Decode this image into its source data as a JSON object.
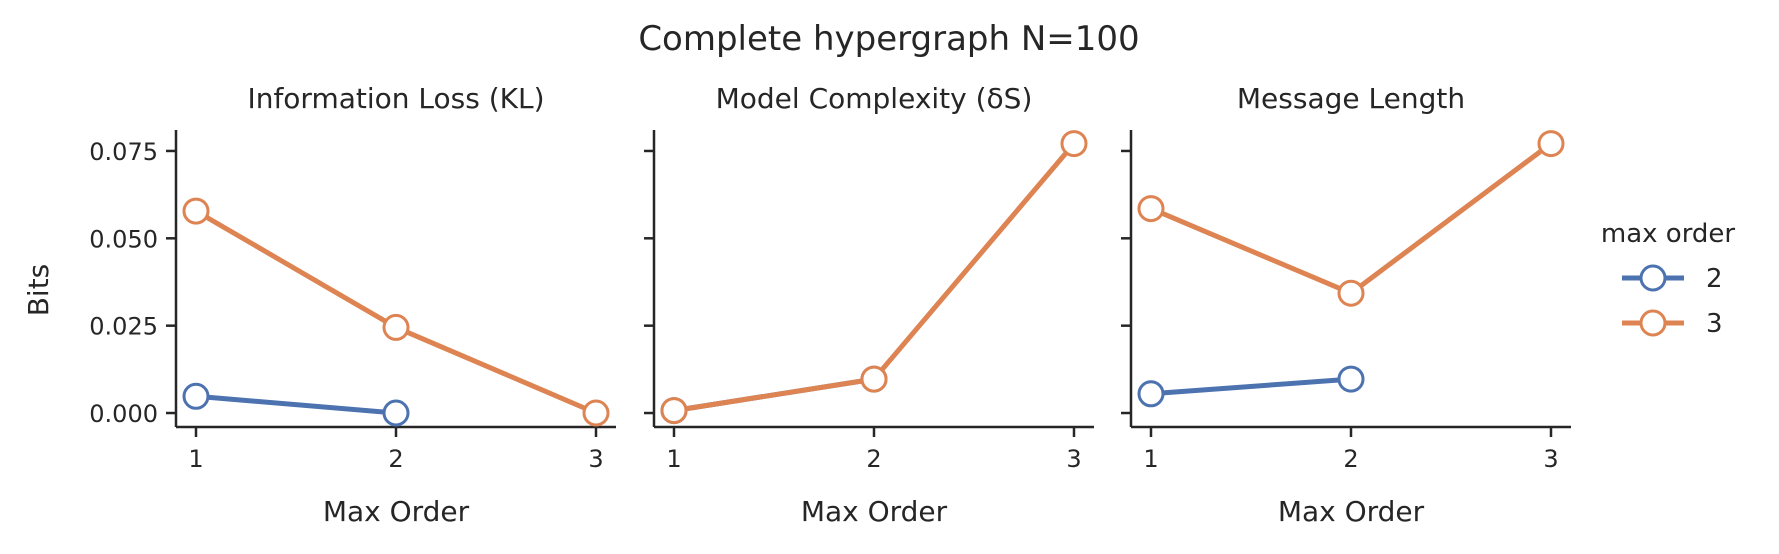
{
  "suptitle": "Complete hypergraph N=100",
  "ylabel": "Bits",
  "legend": {
    "title": "max order",
    "placement": "right",
    "items": [
      {
        "label": "2",
        "color": "#4c72b0"
      },
      {
        "label": "3",
        "color": "#dd8452"
      }
    ]
  },
  "chart_data": [
    {
      "type": "line",
      "title": "Information Loss (KL)",
      "xlabel": "Max Order",
      "ylabel": "Bits",
      "x_ticks": [
        "1",
        "2",
        "3"
      ],
      "y_ticks": [
        "0.000",
        "0.025",
        "0.050",
        "0.075"
      ],
      "ylim": [
        -0.004,
        0.081
      ],
      "series": [
        {
          "name": "2",
          "color": "#4c72b0",
          "x": [
            1,
            2
          ],
          "y": [
            0.0048,
            0.0
          ]
        },
        {
          "name": "3",
          "color": "#dd8452",
          "x": [
            1,
            2,
            3
          ],
          "y": [
            0.0578,
            0.0245,
            0.0
          ]
        }
      ]
    },
    {
      "type": "line",
      "title": "Model Complexity (δS)",
      "xlabel": "Max Order",
      "x_ticks": [
        "1",
        "2",
        "3"
      ],
      "ylim": [
        -0.004,
        0.081
      ],
      "series": [
        {
          "name": "2",
          "color": "#4c72b0",
          "x": [
            1,
            2
          ],
          "y": [
            0.0007,
            0.0097
          ]
        },
        {
          "name": "3",
          "color": "#dd8452",
          "x": [
            1,
            2,
            3
          ],
          "y": [
            0.0007,
            0.0097,
            0.0771
          ]
        }
      ]
    },
    {
      "type": "line",
      "title": "Message Length",
      "xlabel": "Max Order",
      "x_ticks": [
        "1",
        "2",
        "3"
      ],
      "ylim": [
        -0.004,
        0.081
      ],
      "series": [
        {
          "name": "2",
          "color": "#4c72b0",
          "x": [
            1,
            2
          ],
          "y": [
            0.0055,
            0.0097
          ]
        },
        {
          "name": "3",
          "color": "#dd8452",
          "x": [
            1,
            2,
            3
          ],
          "y": [
            0.0585,
            0.0343,
            0.0771
          ]
        }
      ]
    }
  ]
}
